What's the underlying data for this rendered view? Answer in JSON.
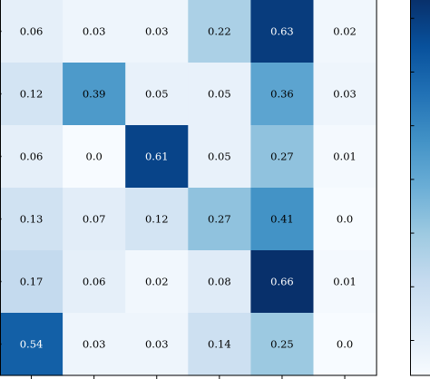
{
  "chart_data": {
    "type": "heatmap",
    "rows": 6,
    "cols": 6,
    "values": [
      [
        0.06,
        0.03,
        0.03,
        0.22,
        0.63,
        0.02
      ],
      [
        0.12,
        0.39,
        0.05,
        0.05,
        0.36,
        0.03
      ],
      [
        0.06,
        0.0,
        0.61,
        0.05,
        0.27,
        0.01
      ],
      [
        0.13,
        0.07,
        0.12,
        0.27,
        0.41,
        0.0
      ],
      [
        0.17,
        0.06,
        0.02,
        0.08,
        0.66,
        0.01
      ],
      [
        0.54,
        0.03,
        0.03,
        0.14,
        0.25,
        0.0
      ]
    ],
    "labels": [
      [
        "0.06",
        "0.03",
        "0.03",
        "0.22",
        "0.63",
        "0.02"
      ],
      [
        "0.12",
        "0.39",
        "0.05",
        "0.05",
        "0.36",
        "0.03"
      ],
      [
        "0.06",
        "0.0",
        "0.61",
        "0.05",
        "0.27",
        "0.01"
      ],
      [
        "0.13",
        "0.07",
        "0.12",
        "0.27",
        "0.41",
        "0.0"
      ],
      [
        "0.17",
        "0.06",
        "0.02",
        "0.08",
        "0.66",
        "0.01"
      ],
      [
        "0.54",
        "0.03",
        "0.03",
        "0.14",
        "0.25",
        "0.0"
      ]
    ],
    "colormap": "Blues",
    "vmin": 0.0,
    "vmax": 0.66,
    "colorbar": true
  }
}
